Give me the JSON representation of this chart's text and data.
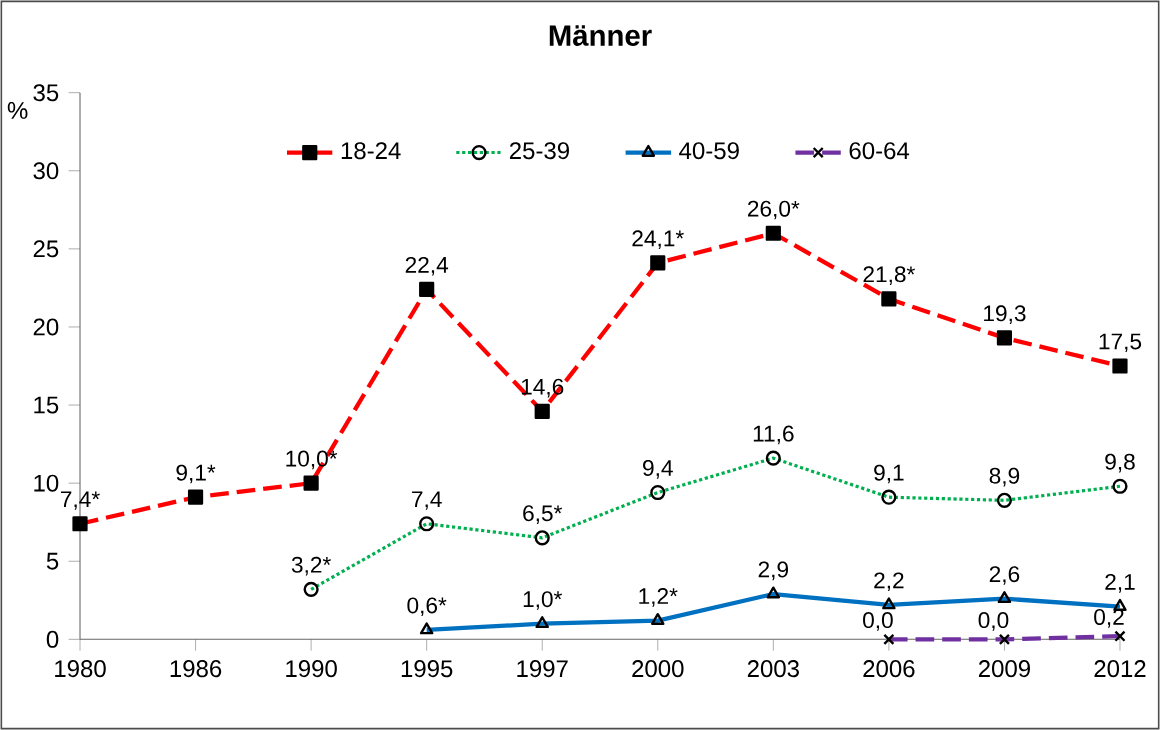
{
  "chart_data": {
    "type": "line",
    "title": "Männer",
    "ylabel": "%",
    "categories": [
      "1980",
      "1986",
      "1990",
      "1995",
      "1997",
      "2000",
      "2003",
      "2006",
      "2009",
      "2012"
    ],
    "ylim": [
      0,
      35
    ],
    "yticks": [
      0,
      5,
      10,
      15,
      20,
      25,
      30,
      35
    ],
    "legend": "top",
    "grid": false,
    "series": [
      {
        "name": "18-24",
        "color": "#ff0000",
        "marker": "square",
        "line_style": "dashed",
        "values": [
          7.4,
          9.1,
          10.0,
          22.4,
          14.6,
          24.1,
          26.0,
          21.8,
          19.3,
          17.5
        ],
        "value_labels": [
          "7,4*",
          "9,1*",
          "10,0*",
          "22,4",
          "14,6",
          "24,1*",
          "26,0*",
          "21,8*",
          "19,3",
          "17,5"
        ]
      },
      {
        "name": "25-39",
        "color": "#00b050",
        "marker": "circle",
        "line_style": "dotted",
        "values": [
          null,
          null,
          3.2,
          7.4,
          6.5,
          9.4,
          11.6,
          9.1,
          8.9,
          9.8
        ],
        "value_labels": [
          null,
          null,
          "3,2*",
          "7,4",
          "6,5*",
          "9,4",
          "11,6",
          "9,1",
          "8,9",
          "9,8"
        ]
      },
      {
        "name": "40-59",
        "color": "#0070c0",
        "marker": "triangle",
        "line_style": "solid",
        "values": [
          null,
          null,
          null,
          0.6,
          1.0,
          1.2,
          2.9,
          2.2,
          2.6,
          2.1
        ],
        "value_labels": [
          null,
          null,
          null,
          "0,6*",
          "1,0*",
          "1,2*",
          "2,9",
          "2,2",
          "2,6",
          "2,1"
        ]
      },
      {
        "name": "60-64",
        "color": "#7030a0",
        "marker": "cross",
        "line_style": "dashed",
        "values": [
          null,
          null,
          null,
          null,
          null,
          null,
          null,
          0.0,
          0.0,
          0.2
        ],
        "value_labels": [
          null,
          null,
          null,
          null,
          null,
          null,
          null,
          "0,0",
          "0,0",
          "0,2"
        ]
      }
    ]
  }
}
